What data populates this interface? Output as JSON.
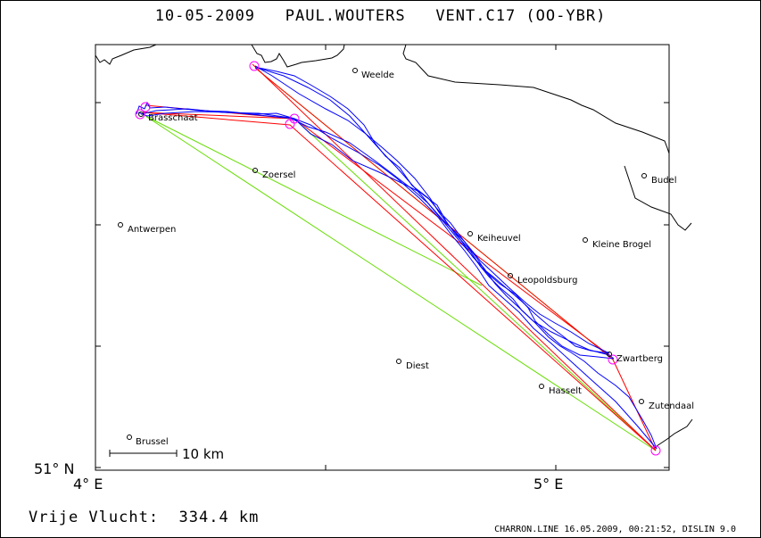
{
  "title": {
    "date": "10-05-2009",
    "pilot": "PAUL.WOUTERS",
    "glider": "VENT.C17 (OO-YBR)"
  },
  "axes": {
    "lat_label": "51° N",
    "lon_labels": [
      "4° E",
      "5° E"
    ]
  },
  "scale_bar": {
    "label": "10 km"
  },
  "places": [
    {
      "name": "Weelde"
    },
    {
      "name": "Brasschaat"
    },
    {
      "name": "Zoersel"
    },
    {
      "name": "Budel"
    },
    {
      "name": "Antwerpen"
    },
    {
      "name": "Keiheuvel"
    },
    {
      "name": "Kleine Brogel"
    },
    {
      "name": "Leopoldsburg"
    },
    {
      "name": "Zwartberg"
    },
    {
      "name": "Diest"
    },
    {
      "name": "Hasselt"
    },
    {
      "name": "Zutendaal"
    },
    {
      "name": "Brussel"
    }
  ],
  "legend_colors": {
    "track": "#0000ff",
    "optimized_legs": "#ff0000",
    "free_flight": "#66dd00",
    "turnpoints": "#ff00ff",
    "border": "#000000"
  },
  "footer": {
    "summary": "Vrije Vlucht:  334.4 km",
    "credit": "CHARRON.LINE 16.05.2009, 00:21:52, DISLIN 9.0"
  }
}
